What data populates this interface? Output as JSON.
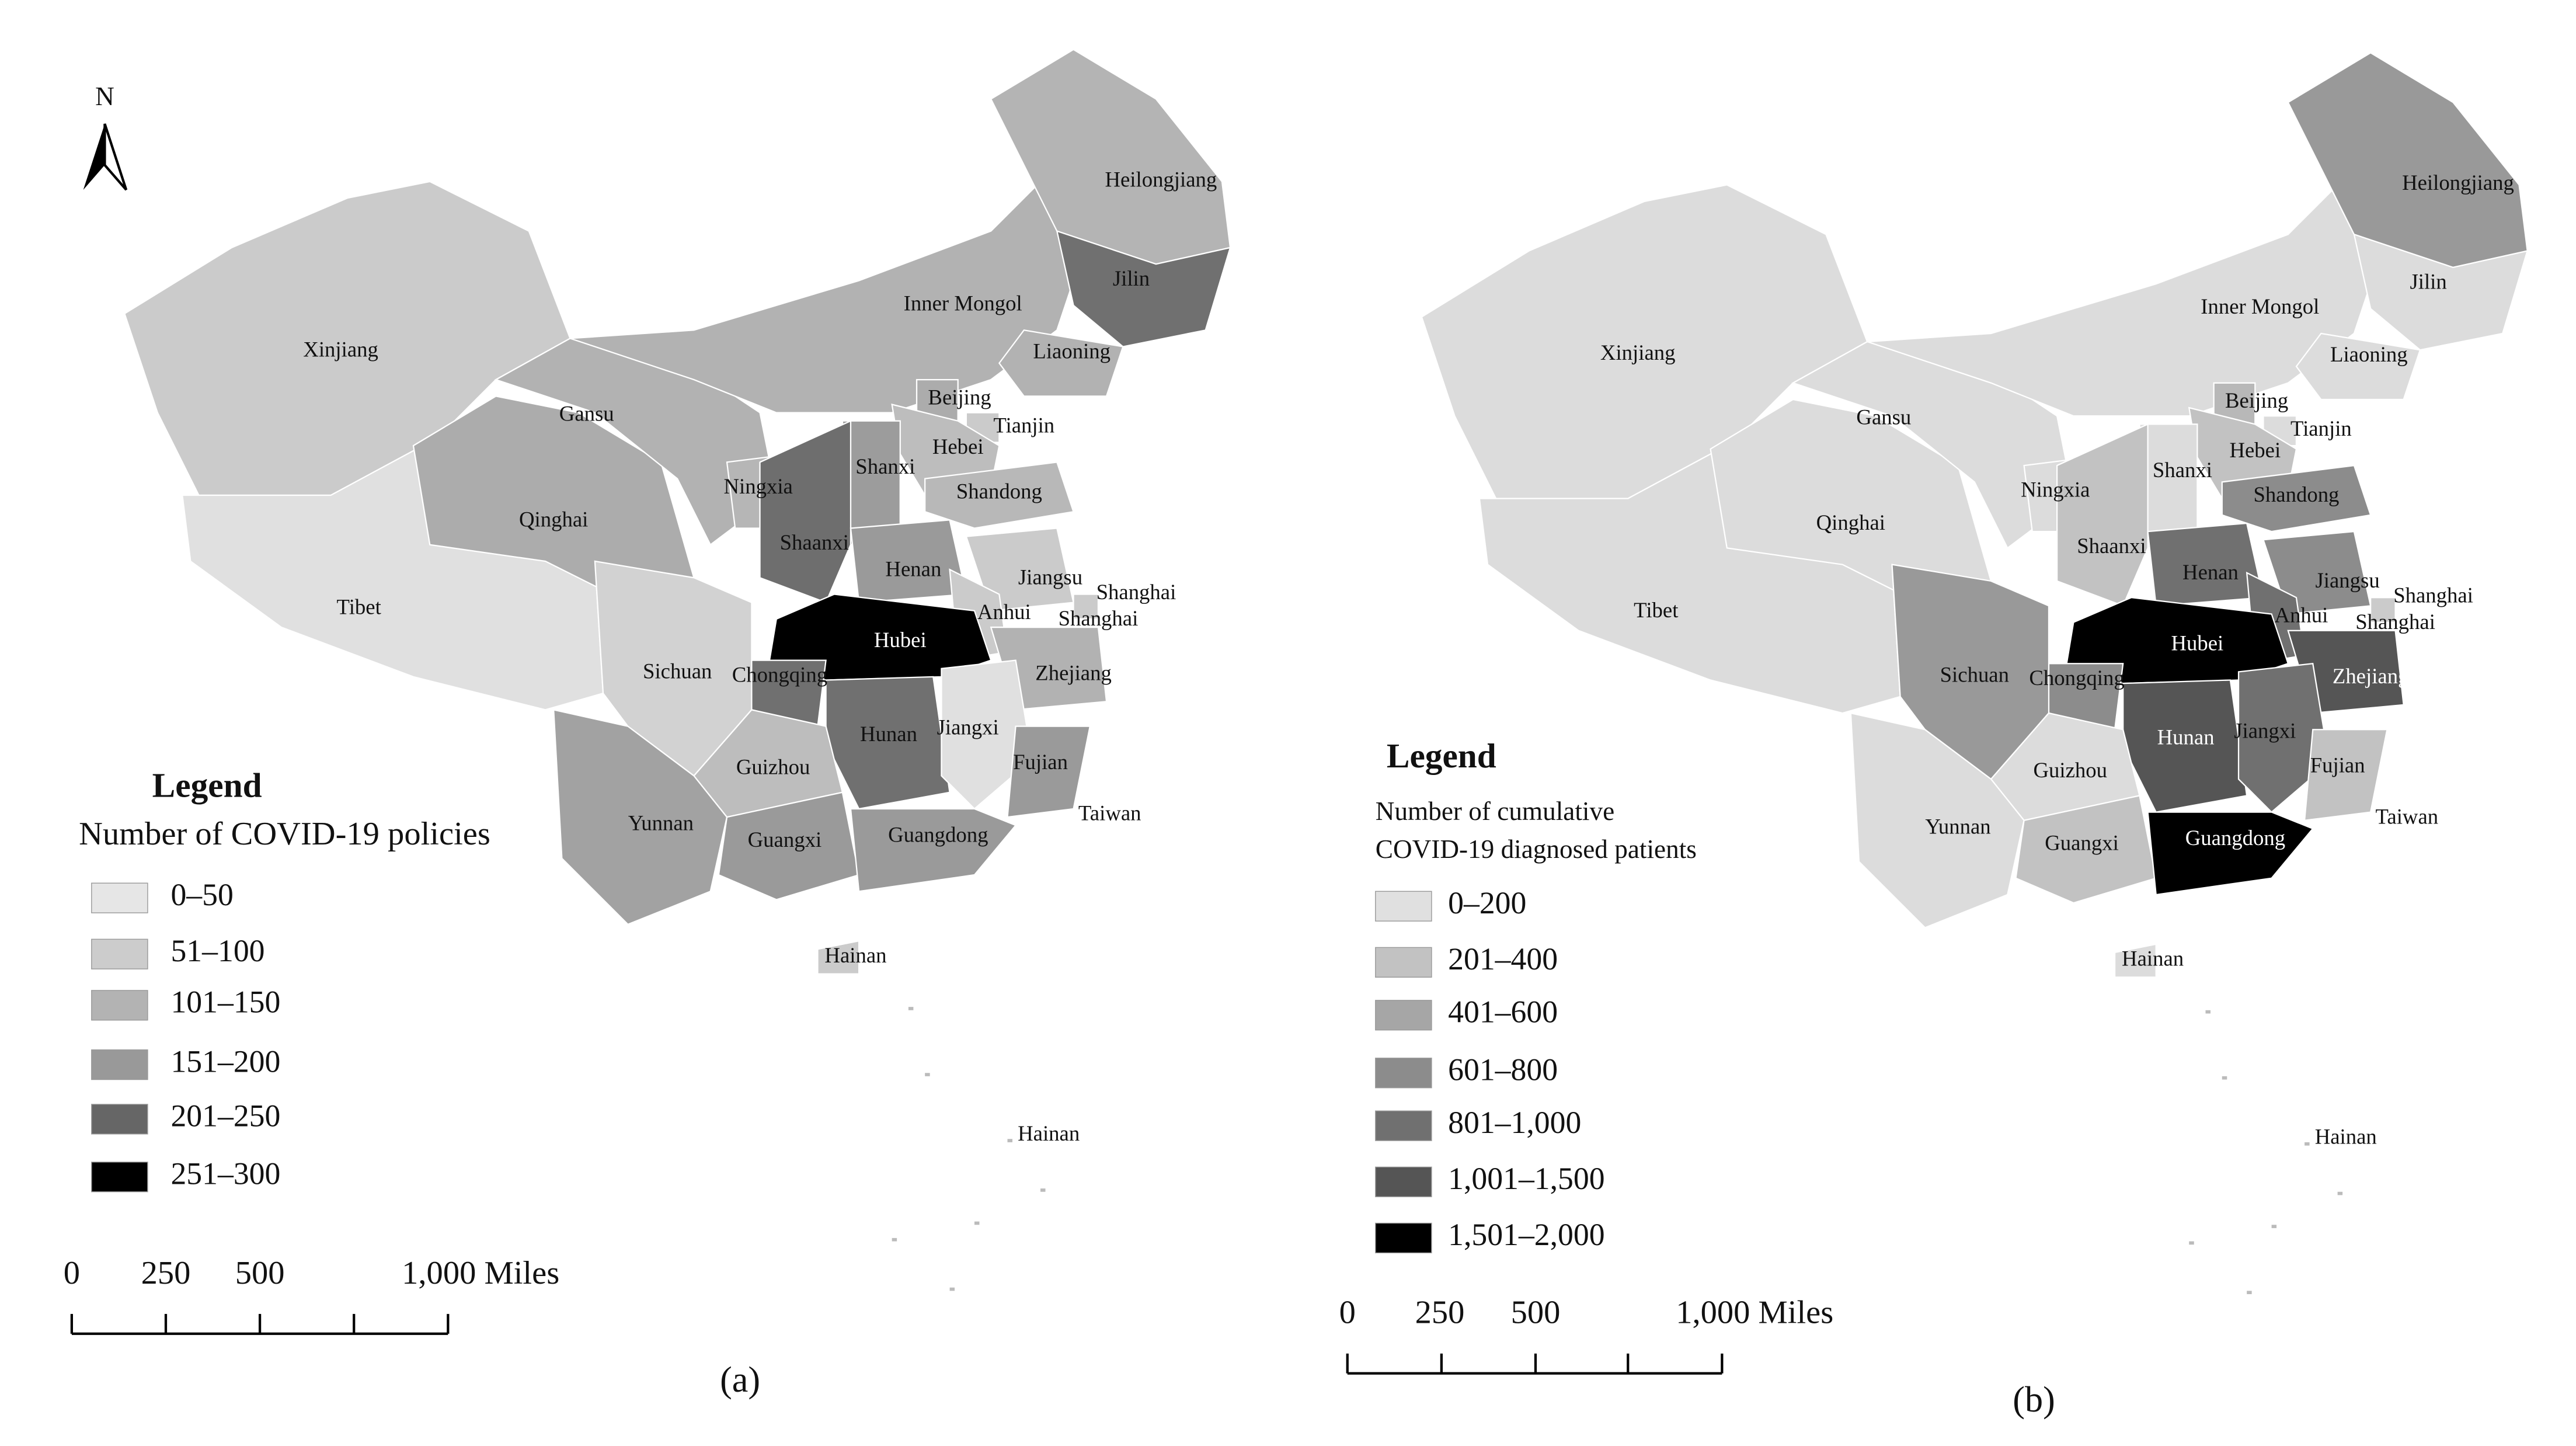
{
  "maps": [
    {
      "north": "N",
      "provinces": [
        {
          "name": "Xinjiang",
          "color": "#cbcbcb"
        },
        {
          "name": "Tibet",
          "color": "#e0e0e0"
        },
        {
          "name": "Qinghai",
          "color": "#acacac"
        },
        {
          "name": "Gansu",
          "color": "#b2b2b2"
        },
        {
          "name": "Inner Mongol",
          "color": "#b2b2b2"
        },
        {
          "name": "Heilongjiang",
          "color": "#b4b4b4"
        },
        {
          "name": "Jilin",
          "color": "#707070"
        },
        {
          "name": "Liaoning",
          "color": "#b2b2b2"
        },
        {
          "name": "Beijing",
          "color": "#acacac"
        },
        {
          "name": "Tianjin",
          "color": "#cbcbcb"
        },
        {
          "name": "Hebei",
          "color": "#bdbdbd"
        },
        {
          "name": "Shanxi",
          "color": "#9c9c9c"
        },
        {
          "name": "Ningxia",
          "color": "#b6b6b6"
        },
        {
          "name": "Shaanxi",
          "color": "#6e6e6e"
        },
        {
          "name": "Shandong",
          "color": "#b8b8b8"
        },
        {
          "name": "Henan",
          "color": "#9a9a9a"
        },
        {
          "name": "Jiangsu",
          "color": "#cbcbcb"
        },
        {
          "name": "Anhui",
          "color": "#cbcbcb"
        },
        {
          "name": "Shanghai",
          "color": "#cbcbcb"
        },
        {
          "name": "Zhejiang",
          "color": "#b2b2b2"
        },
        {
          "name": "Hubei",
          "color": "#000000"
        },
        {
          "name": "Chongqing",
          "color": "#707070"
        },
        {
          "name": "Sichuan",
          "color": "#d2d2d2"
        },
        {
          "name": "Hunan",
          "color": "#707070"
        },
        {
          "name": "Jiangxi",
          "color": "#e0e0e0"
        },
        {
          "name": "Fujian",
          "color": "#9a9a9a"
        },
        {
          "name": "Guizhou",
          "color": "#bdbdbd"
        },
        {
          "name": "Yunnan",
          "color": "#a2a2a2"
        },
        {
          "name": "Guangxi",
          "color": "#9a9a9a"
        },
        {
          "name": "Guangdong",
          "color": "#9a9a9a"
        },
        {
          "name": "Hainan",
          "color": "#cbcbcb"
        },
        {
          "name": "Taiwan",
          "color": "#ffffff"
        }
      ],
      "extra_labels": [
        "Shanghai",
        "Hainan"
      ],
      "legend": {
        "title": "Legend",
        "subtitle": [
          "Number of COVID-19 policies"
        ],
        "items": [
          {
            "label": "0–50",
            "color": "#e6e6e6"
          },
          {
            "label": "51–100",
            "color": "#cccccc"
          },
          {
            "label": "101–150",
            "color": "#b3b3b3"
          },
          {
            "label": "151–200",
            "color": "#999999"
          },
          {
            "label": "201–250",
            "color": "#666666"
          },
          {
            "label": "251–300",
            "color": "#000000"
          }
        ]
      },
      "scale": [
        "0",
        "250",
        "500",
        "1,000 Miles"
      ],
      "caption": "(a)"
    },
    {
      "provinces": [
        {
          "name": "Xinjiang",
          "color": "#dcdcdc"
        },
        {
          "name": "Tibet",
          "color": "#dcdcdc"
        },
        {
          "name": "Qinghai",
          "color": "#dcdcdc"
        },
        {
          "name": "Gansu",
          "color": "#dcdcdc"
        },
        {
          "name": "Inner Mongol",
          "color": "#dcdcdc"
        },
        {
          "name": "Heilongjiang",
          "color": "#999999"
        },
        {
          "name": "Jilin",
          "color": "#dcdcdc"
        },
        {
          "name": "Liaoning",
          "color": "#dcdcdc"
        },
        {
          "name": "Beijing",
          "color": "#b8b8b8"
        },
        {
          "name": "Tianjin",
          "color": "#dcdcdc"
        },
        {
          "name": "Hebei",
          "color": "#c2c2c2"
        },
        {
          "name": "Shanxi",
          "color": "#dcdcdc"
        },
        {
          "name": "Ningxia",
          "color": "#dcdcdc"
        },
        {
          "name": "Shaanxi",
          "color": "#c2c2c2"
        },
        {
          "name": "Shandong",
          "color": "#8c8c8c"
        },
        {
          "name": "Henan",
          "color": "#707070"
        },
        {
          "name": "Jiangsu",
          "color": "#8c8c8c"
        },
        {
          "name": "Anhui",
          "color": "#707070"
        },
        {
          "name": "Shanghai",
          "color": "#cbcbcb"
        },
        {
          "name": "Zhejiang",
          "color": "#555555"
        },
        {
          "name": "Hubei",
          "color": "#000000"
        },
        {
          "name": "Chongqing",
          "color": "#8c8c8c"
        },
        {
          "name": "Sichuan",
          "color": "#999999"
        },
        {
          "name": "Hunan",
          "color": "#555555"
        },
        {
          "name": "Jiangxi",
          "color": "#707070"
        },
        {
          "name": "Fujian",
          "color": "#c2c2c2"
        },
        {
          "name": "Guizhou",
          "color": "#dcdcdc"
        },
        {
          "name": "Yunnan",
          "color": "#dcdcdc"
        },
        {
          "name": "Guangxi",
          "color": "#c2c2c2"
        },
        {
          "name": "Guangdong",
          "color": "#000000"
        },
        {
          "name": "Hainan",
          "color": "#dcdcdc"
        },
        {
          "name": "Taiwan",
          "color": "#ffffff"
        }
      ],
      "extra_labels": [
        "Shanghai",
        "Hainan"
      ],
      "legend": {
        "title": "Legend",
        "subtitle": [
          "Number of cumulative",
          "COVID-19 diagnosed patients"
        ],
        "items": [
          {
            "label": "0–200",
            "color": "#e0e0e0"
          },
          {
            "label": "201–400",
            "color": "#c2c2c2"
          },
          {
            "label": "401–600",
            "color": "#a6a6a6"
          },
          {
            "label": "601–800",
            "color": "#8c8c8c"
          },
          {
            "label": "801–1,000",
            "color": "#707070"
          },
          {
            "label": "1,001–1,500",
            "color": "#555555"
          },
          {
            "label": "1,501–2,000",
            "color": "#000000"
          }
        ]
      },
      "scale": [
        "0",
        "250",
        "500",
        "1,000 Miles"
      ],
      "caption": "(b)"
    }
  ]
}
